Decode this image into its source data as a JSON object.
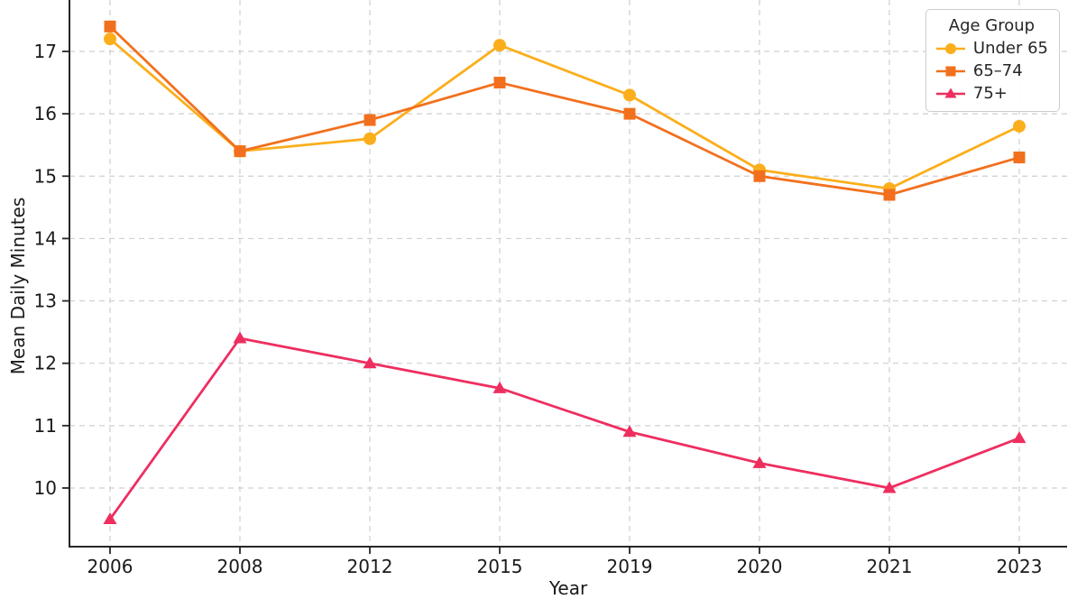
{
  "chart_data": {
    "type": "line",
    "xlabel": "Year",
    "ylabel": "Mean Daily Minutes",
    "categories": [
      "2006",
      "2008",
      "2012",
      "2015",
      "2019",
      "2020",
      "2021",
      "2023"
    ],
    "series": [
      {
        "name": "Under 65",
        "marker": "circle",
        "color": "#FBAE1C",
        "values": [
          17.2,
          15.4,
          15.6,
          17.1,
          16.3,
          15.1,
          14.8,
          15.8
        ]
      },
      {
        "name": "65–74",
        "marker": "square",
        "color": "#F2701D",
        "values": [
          17.4,
          15.4,
          15.9,
          16.5,
          16.0,
          15.0,
          14.7,
          15.3
        ]
      },
      {
        "name": "75+",
        "marker": "triangle",
        "color": "#EE2E5F",
        "values": [
          9.5,
          12.4,
          12.0,
          11.6,
          10.9,
          10.4,
          10.0,
          10.8
        ]
      }
    ],
    "yticks": [
      10,
      11,
      12,
      13,
      14,
      15,
      16,
      17
    ],
    "ylim_visible": [
      9.06,
      17.82
    ],
    "grid": true,
    "grid_style": "dashed",
    "legend": {
      "title": "Age Group",
      "position": "upper right"
    }
  },
  "colors": {
    "background": "#ffffff",
    "grid": "#cfcfcf",
    "axis": "#262626",
    "tick_label": "#1a1a1a"
  }
}
